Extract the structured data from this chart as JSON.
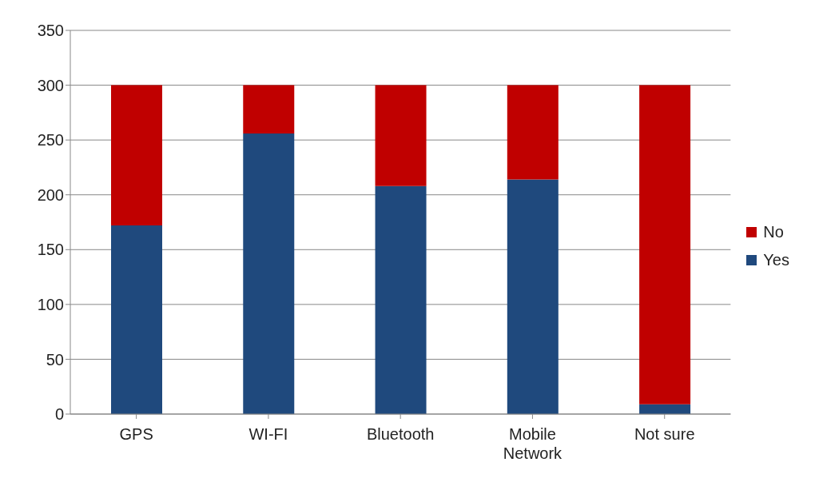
{
  "chart_data": {
    "type": "bar",
    "stacked": true,
    "categories": [
      "GPS",
      "WI-FI",
      "Bluetooth",
      "Mobile Network",
      "Not sure"
    ],
    "series": [
      {
        "name": "Yes",
        "color": "#1f497d",
        "values": [
          172,
          256,
          208,
          214,
          9
        ]
      },
      {
        "name": "No",
        "color": "#c00000",
        "values": [
          128,
          44,
          92,
          86,
          291
        ]
      }
    ],
    "ylim": [
      0,
      350
    ],
    "yticks": [
      0,
      50,
      100,
      150,
      200,
      250,
      300,
      350
    ],
    "grid": "y",
    "legend": "right"
  }
}
